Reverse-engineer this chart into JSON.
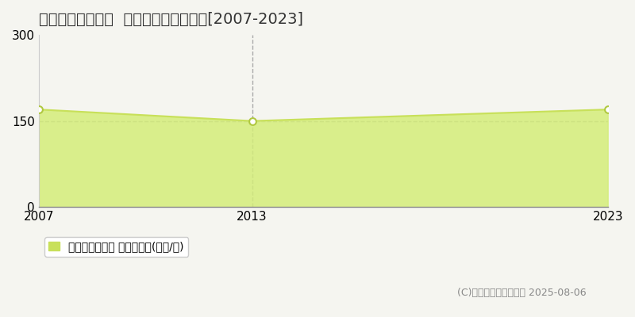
{
  "title": "神戸市灘区高羽町  マンション価格推移[2007-2023]",
  "years": [
    2007,
    2013,
    2023
  ],
  "values": [
    170,
    150,
    170
  ],
  "ylim": [
    0,
    300
  ],
  "yticks": [
    0,
    150,
    300
  ],
  "xticks": [
    2007,
    2013,
    2023
  ],
  "line_color": "#c8e05a",
  "fill_color": "#d4ed7a",
  "fill_alpha": 0.85,
  "marker_color": "#ffffff",
  "marker_edge_color": "#b0c840",
  "dashed_vline_x": 2013,
  "dashed_hline_y": 150,
  "background_color": "#f5f5f0",
  "legend_label": "マンション価格 平均坪単価(万円/坪)",
  "legend_marker_color": "#c8e05a",
  "copyright_text": "(C)土地価格ドットコム 2025-08-06",
  "title_fontsize": 14,
  "tick_fontsize": 11,
  "legend_fontsize": 10,
  "copyright_fontsize": 9
}
